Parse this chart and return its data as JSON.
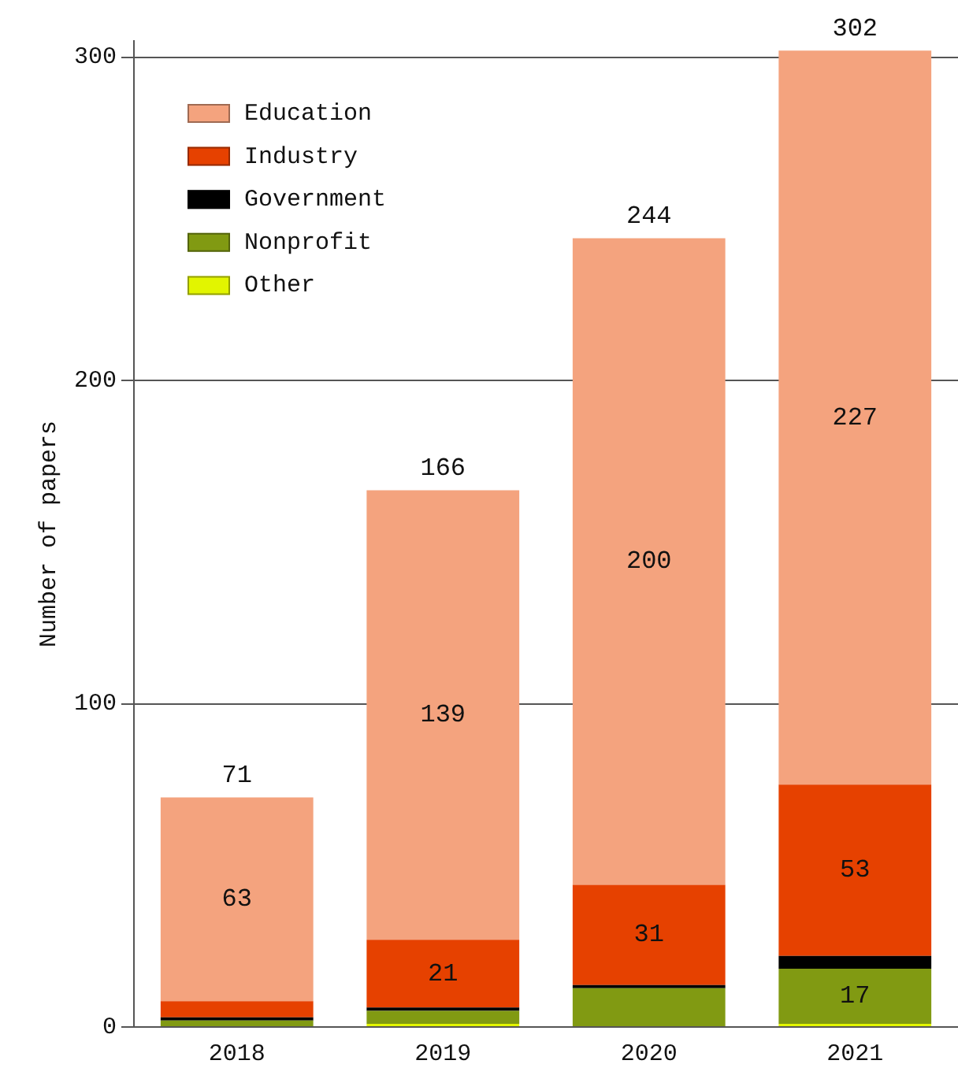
{
  "chart_data": {
    "type": "bar",
    "stacked": true,
    "ylabel": "Number of papers",
    "categories": [
      "2018",
      "2019",
      "2020",
      "2021"
    ],
    "series": [
      {
        "name": "Other",
        "color": "#e2f500",
        "values": [
          0,
          1,
          0,
          1
        ]
      },
      {
        "name": "Nonprofit",
        "color": "#819a12",
        "values": [
          2,
          4,
          12,
          17
        ],
        "value_labels": [
          null,
          null,
          null,
          "17"
        ]
      },
      {
        "name": "Government",
        "color": "#000000",
        "values": [
          1,
          1,
          1,
          4
        ]
      },
      {
        "name": "Industry",
        "color": "#e64100",
        "values": [
          5,
          21,
          31,
          53
        ],
        "value_labels": [
          null,
          "21",
          "31",
          "53"
        ]
      },
      {
        "name": "Education",
        "color": "#f4a37e",
        "values": [
          63,
          139,
          200,
          227
        ],
        "value_labels": [
          "63",
          "139",
          "200",
          "227"
        ]
      }
    ],
    "totals": [
      "71",
      "166",
      "244",
      "302"
    ],
    "ylim": [
      0,
      305
    ],
    "yticks": [
      0,
      100,
      200,
      300
    ],
    "grid": "y",
    "legend": "top left"
  }
}
